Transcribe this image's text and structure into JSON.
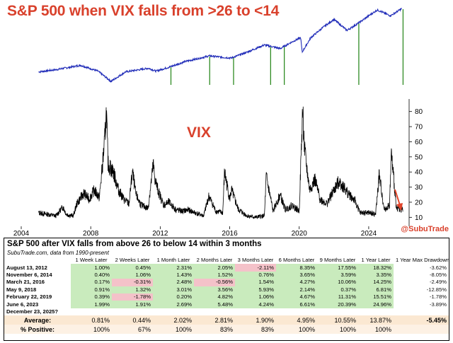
{
  "chart_data": [
    {
      "type": "line",
      "title": "S&P 500 when VIX falls from >26 to <14",
      "series": [
        {
          "x": [
            "2005-01",
            "2006-01",
            "2007-06",
            "2008-06",
            "2009-03",
            "2010-01",
            "2011-05",
            "2011-10",
            "2012-08",
            "2013-06",
            "2014-11",
            "2015-08",
            "2016-02",
            "2017-01",
            "2018-01",
            "2018-12",
            "2019-06",
            "2020-02",
            "2020-03",
            "2020-09",
            "2021-06",
            "2022-01",
            "2022-10",
            "2023-06",
            "2024-01",
            "2024-07",
            "2025-04",
            "2025-12"
          ],
          "values": [
            0.13,
            0.16,
            0.22,
            0.14,
            0.0,
            0.13,
            0.18,
            0.14,
            0.2,
            0.27,
            0.35,
            0.33,
            0.32,
            0.4,
            0.5,
            0.45,
            0.52,
            0.6,
            0.4,
            0.6,
            0.75,
            0.85,
            0.7,
            0.8,
            0.9,
            0.98,
            0.9,
            1.0
          ]
        }
      ],
      "signal_dates": [
        "2012-08-13",
        "2014-11-06",
        "2016-03-21",
        "2018-05-09",
        "2019-02-22",
        "2023-06-06",
        "2025-12-23"
      ]
    },
    {
      "type": "line",
      "title": "VIX",
      "xlim": [
        2004,
        2026
      ],
      "ylim": [
        5,
        85
      ],
      "xticks": [
        2004,
        2008,
        2012,
        2016,
        2020,
        2024
      ],
      "yticks": [
        10,
        20,
        30,
        40,
        50,
        60,
        70,
        80
      ],
      "series": [
        {
          "x": [
            2005.0,
            2005.5,
            2006.0,
            2006.4,
            2006.6,
            2007.0,
            2007.2,
            2007.6,
            2007.9,
            2008.2,
            2008.5,
            2008.8,
            2008.9,
            2009.0,
            2009.3,
            2009.6,
            2009.9,
            2010.2,
            2010.4,
            2010.6,
            2010.9,
            2011.3,
            2011.6,
            2011.7,
            2011.9,
            2012.2,
            2012.5,
            2012.9,
            2013.3,
            2013.6,
            2014.0,
            2014.5,
            2014.8,
            2015.2,
            2015.6,
            2015.7,
            2016.0,
            2016.1,
            2016.5,
            2017.0,
            2017.5,
            2018.0,
            2018.1,
            2018.5,
            2018.9,
            2019.2,
            2019.6,
            2020.0,
            2020.2,
            2020.3,
            2020.6,
            2020.9,
            2021.2,
            2021.6,
            2022.0,
            2022.3,
            2022.8,
            2023.2,
            2023.5,
            2024.0,
            2024.4,
            2024.6,
            2024.9,
            2025.2,
            2025.3,
            2025.6,
            2025.98
          ],
          "values": [
            13,
            12,
            11,
            17,
            12,
            11,
            19,
            26,
            22,
            28,
            23,
            60,
            80,
            45,
            40,
            28,
            22,
            19,
            40,
            25,
            18,
            16,
            45,
            35,
            27,
            18,
            20,
            15,
            14,
            15,
            13,
            11,
            24,
            14,
            13,
            40,
            22,
            28,
            15,
            11,
            10,
            11,
            37,
            14,
            25,
            15,
            18,
            14,
            82,
            55,
            28,
            35,
            22,
            19,
            28,
            34,
            26,
            21,
            13,
            13,
            12,
            38,
            15,
            18,
            52,
            16,
            15
          ]
        }
      ]
    }
  ],
  "table": {
    "title": "S&P 500 after VIX falls from above 26 to below 14 within 3 months",
    "subtitle": "SubuTrade.com, data from 1990-present",
    "headers": [
      "",
      "1 Week Later",
      "2 Weeks Later",
      "1 Month Later",
      "2 Months Later",
      "3 Months Later",
      "6 Months Later",
      "9 Months Later",
      "1 Year Later",
      "1 Year Max Drawdown"
    ],
    "rows": [
      {
        "date": "August 13, 2012",
        "values": [
          "1.00%",
          "0.45%",
          "2.31%",
          "2.05%",
          "-2.11%",
          "8.35%",
          "17.55%",
          "18.32%"
        ],
        "drawdown": "-3.62%"
      },
      {
        "date": "November 6, 2014",
        "values": [
          "0.40%",
          "1.06%",
          "1.43%",
          "1.52%",
          "0.76%",
          "3.65%",
          "3.59%",
          "3.35%"
        ],
        "drawdown": "-8.05%"
      },
      {
        "date": "March 21, 2016",
        "values": [
          "0.17%",
          "-0.31%",
          "2.48%",
          "-0.56%",
          "1.54%",
          "4.27%",
          "10.06%",
          "14.25%"
        ],
        "drawdown": "-2.49%"
      },
      {
        "date": "May 9, 2018",
        "values": [
          "0.91%",
          "1.32%",
          "3.01%",
          "3.56%",
          "5.93%",
          "2.14%",
          "0.37%",
          "6.81%"
        ],
        "drawdown": "-12.85%"
      },
      {
        "date": "February 22, 2019",
        "values": [
          "0.39%",
          "-1.78%",
          "0.20%",
          "4.82%",
          "1.06%",
          "4.67%",
          "11.31%",
          "15.51%"
        ],
        "drawdown": "-1.78%"
      },
      {
        "date": "June 6, 2023",
        "values": [
          "1.99%",
          "1.91%",
          "2.69%",
          "5.48%",
          "4.24%",
          "6.61%",
          "20.39%",
          "24.96%"
        ],
        "drawdown": "-3.89%"
      },
      {
        "date": "December 23, 2025?",
        "values": [
          "",
          "",
          "",
          "",
          "",
          "",
          "",
          ""
        ],
        "drawdown": ""
      }
    ],
    "average": {
      "label": "Average:",
      "values": [
        "0.81%",
        "0.44%",
        "2.02%",
        "2.81%",
        "1.90%",
        "4.95%",
        "10.55%",
        "13.87%"
      ],
      "drawdown": "-5.45%"
    },
    "positive": {
      "label": "% Positive:",
      "values": [
        "100%",
        "67%",
        "100%",
        "83%",
        "83%",
        "100%",
        "100%",
        "100%"
      ]
    }
  },
  "credit": "@SubuTrade",
  "colors": {
    "title": "#d9412c",
    "spx": "#1f2bb8",
    "signal": "#2e8b22",
    "vix": "#000000",
    "arrow": "#e0442a"
  }
}
